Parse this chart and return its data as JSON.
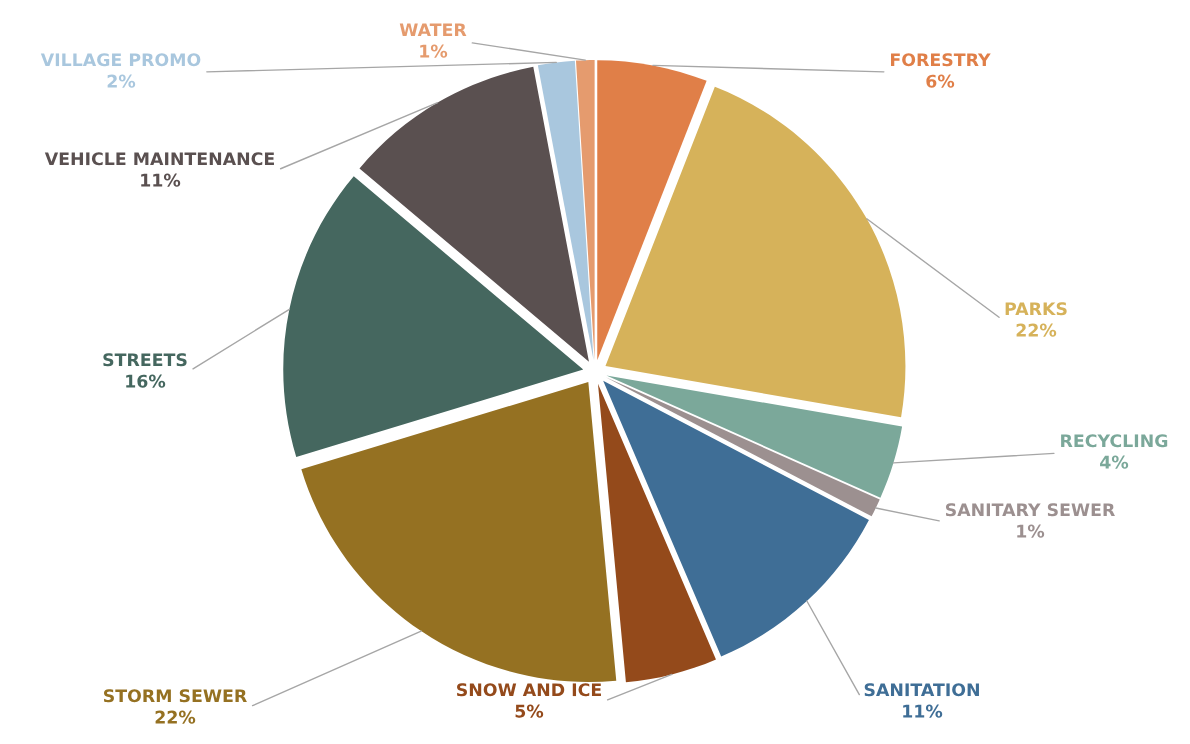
{
  "chart_data": {
    "type": "pie",
    "categories": [
      "FORESTRY",
      "PARKS",
      "RECYCLING",
      "SANITARY SEWER",
      "SANITATION",
      "SNOW AND ICE",
      "STORM SEWER",
      "STREETS",
      "VEHICLE MAINTENANCE",
      "VILLAGE PROMO",
      "WATER"
    ],
    "values": [
      6,
      22,
      4,
      1,
      11,
      5,
      22,
      16,
      11,
      2,
      1
    ],
    "colors": [
      "#e07f48",
      "#d6b25a",
      "#7ba89a",
      "#9c9090",
      "#3f6e96",
      "#944a1b",
      "#957122",
      "#45675f",
      "#5a5050",
      "#a9c7de",
      "#e59b6e"
    ],
    "value_labels": [
      "6%",
      "22%",
      "4%",
      "1%",
      "11%",
      "5%",
      "22%",
      "16%",
      "11%",
      "2%",
      "1%"
    ],
    "legend": false
  }
}
